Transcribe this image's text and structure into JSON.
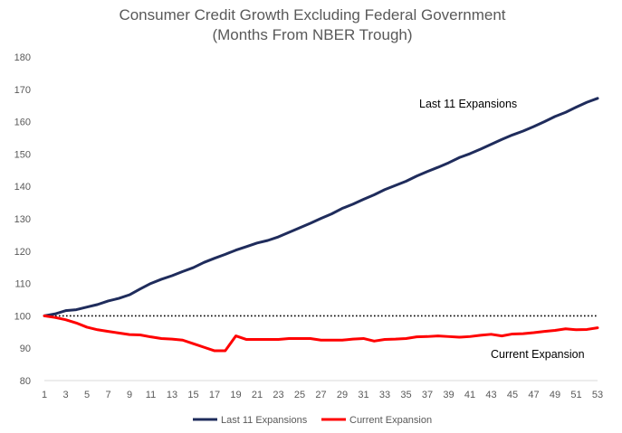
{
  "chart_data": {
    "type": "line",
    "title": "Consumer Credit Growth Excluding Federal Government",
    "subtitle": "(Months From NBER Trough)",
    "xlabel": "",
    "ylabel": "",
    "ylim": [
      80,
      180
    ],
    "yticks": [
      80,
      90,
      100,
      110,
      120,
      130,
      140,
      150,
      160,
      170,
      180
    ],
    "xlim": [
      1,
      53
    ],
    "xticks": [
      1,
      3,
      5,
      7,
      9,
      11,
      13,
      15,
      17,
      19,
      21,
      23,
      25,
      27,
      29,
      31,
      33,
      35,
      37,
      39,
      41,
      43,
      45,
      47,
      49,
      51,
      53
    ],
    "grid": false,
    "legend_position": "bottom",
    "reference_line": {
      "y": 100,
      "style": "dotted",
      "color": "#000000"
    },
    "x": [
      1,
      2,
      3,
      4,
      5,
      6,
      7,
      8,
      9,
      10,
      11,
      12,
      13,
      14,
      15,
      16,
      17,
      18,
      19,
      20,
      21,
      22,
      23,
      24,
      25,
      26,
      27,
      28,
      29,
      30,
      31,
      32,
      33,
      34,
      35,
      36,
      37,
      38,
      39,
      40,
      41,
      42,
      43,
      44,
      45,
      46,
      47,
      48,
      49,
      50,
      51,
      52,
      53
    ],
    "series": [
      {
        "name": "Last 11 Expansions",
        "color": "#1f2c5c",
        "values": [
          100.0,
          100.6,
          101.6,
          101.9,
          102.7,
          103.5,
          104.6,
          105.4,
          106.5,
          108.3,
          110.0,
          111.3,
          112.4,
          113.7,
          114.9,
          116.5,
          117.8,
          119.0,
          120.3,
          121.4,
          122.5,
          123.3,
          124.4,
          125.8,
          127.2,
          128.6,
          130.1,
          131.5,
          133.2,
          134.5,
          136.0,
          137.4,
          139.0,
          140.3,
          141.6,
          143.2,
          144.6,
          145.9,
          147.3,
          148.9,
          150.1,
          151.5,
          153.0,
          154.5,
          155.9,
          157.1,
          158.5,
          160.0,
          161.6,
          162.9,
          164.5,
          166.0,
          167.2
        ]
      },
      {
        "name": "Current Expansion",
        "color": "#ff0000",
        "values": [
          100.0,
          99.5,
          98.8,
          97.8,
          96.5,
          95.7,
          95.2,
          94.7,
          94.2,
          94.1,
          93.5,
          93.0,
          92.8,
          92.5,
          91.4,
          90.3,
          89.2,
          89.2,
          93.8,
          92.7,
          92.7,
          92.7,
          92.7,
          93.0,
          93.0,
          93.0,
          92.5,
          92.5,
          92.5,
          92.8,
          93.0,
          92.2,
          92.7,
          92.8,
          93.0,
          93.5,
          93.6,
          93.8,
          93.6,
          93.4,
          93.6,
          94.0,
          94.3,
          93.8,
          94.4,
          94.5,
          94.8,
          95.2,
          95.5,
          96.0,
          95.7,
          95.8,
          96.3
        ]
      }
    ],
    "annotations": [
      {
        "text": "Last 11 Expansions",
        "near_series": "Last 11 Expansions"
      },
      {
        "text": "Current Expansion",
        "near_series": "Current Expansion"
      }
    ]
  }
}
